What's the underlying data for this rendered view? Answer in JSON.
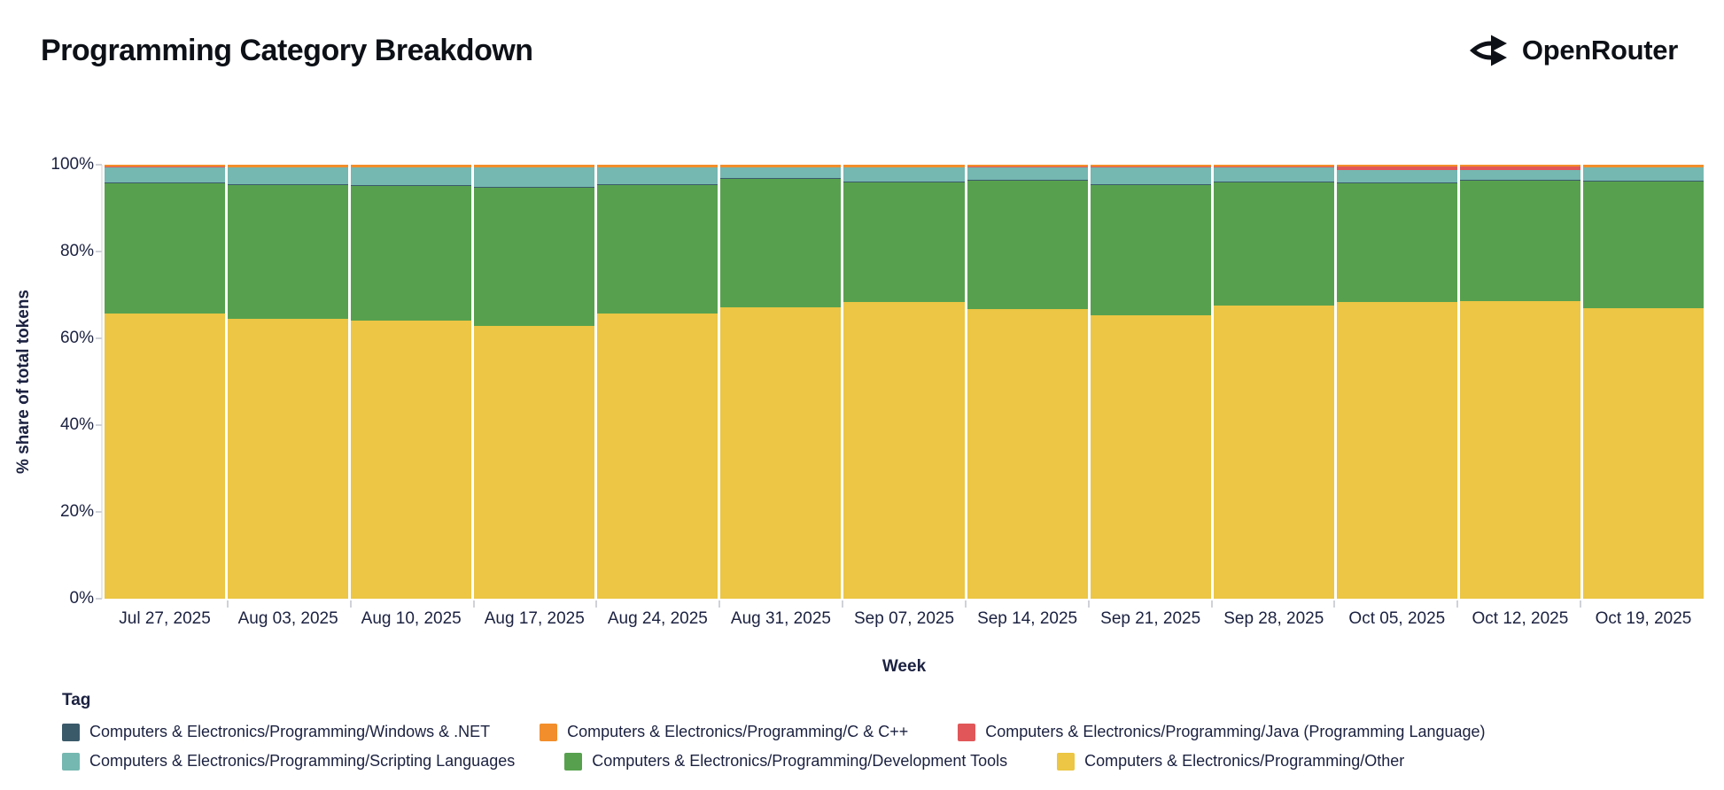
{
  "header": {
    "title": "Programming Category Breakdown",
    "brand": "OpenRouter"
  },
  "chart_data": {
    "type": "bar",
    "stacked": true,
    "orientation": "vertical",
    "title": "Programming Category Breakdown",
    "xlabel": "Week",
    "ylabel": "% share of total tokens",
    "ylim": [
      0,
      100
    ],
    "grid": false,
    "yticks": [
      {
        "value": 0,
        "label": "0%"
      },
      {
        "value": 20,
        "label": "20%"
      },
      {
        "value": 40,
        "label": "40%"
      },
      {
        "value": 60,
        "label": "60%"
      },
      {
        "value": 80,
        "label": "80%"
      },
      {
        "value": 100,
        "label": "100%"
      }
    ],
    "categories": [
      "Jul 27, 2025",
      "Aug 03, 2025",
      "Aug 10, 2025",
      "Aug 17, 2025",
      "Aug 24, 2025",
      "Aug 31, 2025",
      "Sep 07, 2025",
      "Sep 14, 2025",
      "Sep 21, 2025",
      "Sep 28, 2025",
      "Oct 05, 2025",
      "Oct 12, 2025",
      "Oct 19, 2025"
    ],
    "stack_order_note": "series listed bottom-to-top of the stack",
    "series": [
      {
        "key": "other",
        "name": "Computers & Electronics/Programming/Other",
        "color": "#ECC644",
        "values": [
          65.7,
          64.5,
          64.0,
          62.9,
          65.8,
          67.1,
          68.3,
          66.7,
          65.3,
          67.6,
          68.4,
          68.6,
          66.9
        ]
      },
      {
        "key": "development-tools",
        "name": "Computers & Electronics/Programming/Development Tools",
        "color": "#57A14E",
        "values": [
          30.1,
          30.9,
          31.1,
          31.9,
          29.6,
          29.7,
          27.7,
          29.6,
          30.1,
          28.4,
          27.4,
          27.8,
          29.3
        ]
      },
      {
        "key": "windows-dotnet",
        "name": "Computers & Electronics/Programming/Windows & .NET",
        "color": "#3A5A6A",
        "pattern": "dots",
        "values": [
          0.2,
          0.2,
          0.2,
          0.2,
          0.2,
          0.2,
          0.2,
          0.2,
          0.2,
          0.2,
          0.2,
          0.2,
          0.2
        ]
      },
      {
        "key": "scripting-languages",
        "name": "Computers & Electronics/Programming/Scripting Languages",
        "color": "#75B7B1",
        "values": [
          3.4,
          3.7,
          4.0,
          4.3,
          3.7,
          2.4,
          3.2,
          2.9,
          3.8,
          3.2,
          2.7,
          2.1,
          3.0
        ]
      },
      {
        "key": "java",
        "name": "Computers & Electronics/Programming/Java (Programming Language)",
        "color": "#E15759",
        "values": [
          0.1,
          0.1,
          0.1,
          0.1,
          0.1,
          0.1,
          0.1,
          0.1,
          0.1,
          0.1,
          0.9,
          0.9,
          0.1
        ]
      },
      {
        "key": "c-cpp",
        "name": "Computers & Electronics/Programming/C & C++",
        "color": "#F28E2B",
        "values": [
          0.5,
          0.6,
          0.6,
          0.6,
          0.6,
          0.5,
          0.5,
          0.5,
          0.5,
          0.5,
          0.4,
          0.4,
          0.5
        ]
      }
    ],
    "legend": {
      "title": "Tag",
      "position": "bottom",
      "rows": [
        [
          "windows-dotnet",
          "c-cpp",
          "java"
        ],
        [
          "scripting-languages",
          "development-tools",
          "other"
        ]
      ]
    }
  }
}
